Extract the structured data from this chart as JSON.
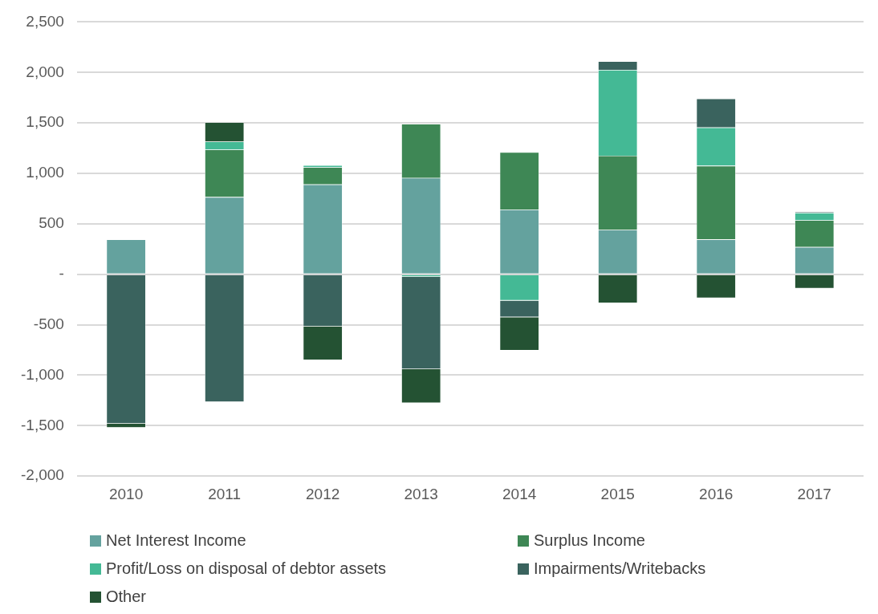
{
  "chart_data": {
    "type": "bar",
    "stacked": true,
    "categories": [
      "2010",
      "2011",
      "2012",
      "2013",
      "2014",
      "2015",
      "2016",
      "2017"
    ],
    "series": [
      {
        "name": "Net Interest Income",
        "color": "#64a29e",
        "values": [
          345,
          765,
          890,
          955,
          640,
          440,
          345,
          270
        ]
      },
      {
        "name": "Surplus Income",
        "color": "#3e8755",
        "values": [
          0,
          470,
          170,
          535,
          570,
          735,
          730,
          265
        ]
      },
      {
        "name": "Profit/Loss on disposal of debtor assets",
        "color": "#44b995",
        "values": [
          0,
          80,
          20,
          -25,
          -260,
          850,
          380,
          75
        ]
      },
      {
        "name": "Impairments/Writebacks",
        "color": "#3a635e",
        "values": [
          -1480,
          -1265,
          -515,
          -915,
          -165,
          85,
          285,
          10
        ]
      },
      {
        "name": "Other",
        "color": "#245233",
        "values": [
          -40,
          190,
          -335,
          -335,
          -330,
          -285,
          -235,
          -140
        ]
      }
    ],
    "ylim": [
      -2000,
      2500
    ],
    "yticks": [
      {
        "value": -2000,
        "label": "-2,000"
      },
      {
        "value": -1500,
        "label": "-1,500"
      },
      {
        "value": -1000,
        "label": "-1,000"
      },
      -500,
      {
        "value": 0,
        "label": "-"
      },
      500,
      {
        "value": 1000,
        "label": "1,000"
      },
      {
        "value": 1500,
        "label": "1,500"
      },
      {
        "value": 2000,
        "label": "2,000"
      },
      {
        "value": 2500,
        "label": "2,500"
      }
    ],
    "grid": "y",
    "legend": "bottom"
  }
}
